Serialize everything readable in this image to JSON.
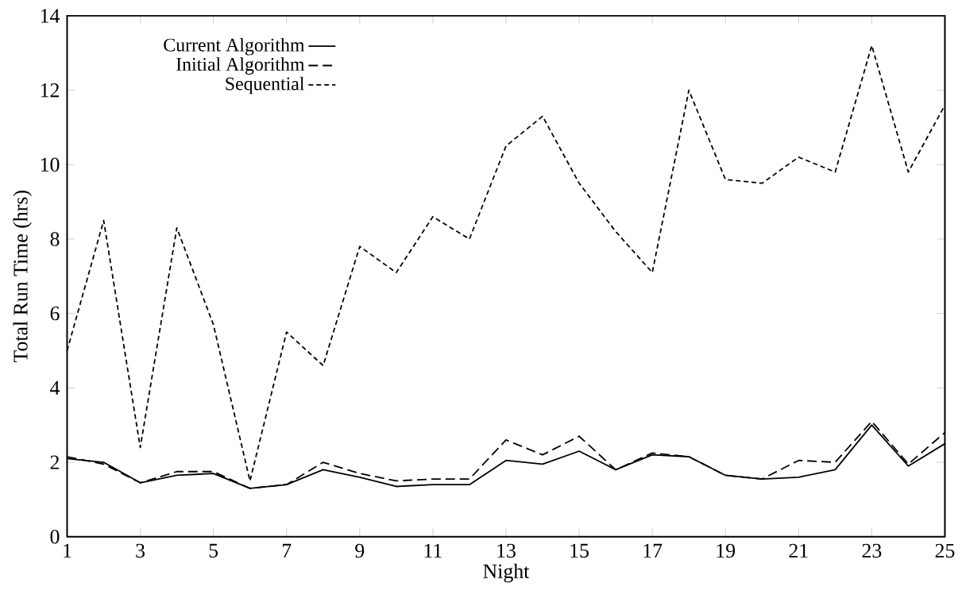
{
  "chart_data": {
    "type": "line",
    "xlabel": "Night",
    "ylabel": "Total Run Time (hrs)",
    "x": [
      1,
      2,
      3,
      4,
      5,
      6,
      7,
      8,
      9,
      10,
      11,
      12,
      13,
      14,
      15,
      16,
      17,
      18,
      19,
      20,
      21,
      22,
      23,
      24,
      25
    ],
    "series": [
      {
        "name": "Current Algorithm",
        "color": "#000000",
        "line_style": "solid",
        "values": [
          2.1,
          2.0,
          1.45,
          1.65,
          1.7,
          1.3,
          1.4,
          1.8,
          1.6,
          1.35,
          1.4,
          1.4,
          2.05,
          1.95,
          2.3,
          1.8,
          2.2,
          2.15,
          1.65,
          1.55,
          1.6,
          1.8,
          3.0,
          1.9,
          2.5
        ]
      },
      {
        "name": "Initial Algorithm",
        "color": "#000000",
        "line_style": "dashed",
        "values": [
          2.15,
          1.95,
          1.45,
          1.75,
          1.75,
          1.3,
          1.4,
          2.0,
          1.7,
          1.5,
          1.55,
          1.55,
          2.6,
          2.2,
          2.7,
          1.8,
          2.25,
          2.15,
          1.65,
          1.55,
          2.05,
          2.0,
          3.1,
          1.95,
          2.8
        ]
      },
      {
        "name": "Sequential",
        "color": "#000000",
        "line_style": "dotted",
        "values": [
          5.0,
          8.5,
          2.4,
          8.3,
          5.7,
          1.5,
          5.5,
          4.6,
          7.8,
          7.1,
          8.6,
          8.0,
          10.5,
          11.3,
          9.5,
          8.2,
          7.1,
          12.0,
          9.6,
          9.5,
          10.2,
          9.8,
          13.2,
          9.8,
          11.6
        ]
      }
    ],
    "xlim": [
      1,
      25
    ],
    "ylim": [
      0,
      14
    ],
    "xticks": [
      1,
      3,
      5,
      7,
      9,
      11,
      13,
      15,
      17,
      19,
      21,
      23,
      25
    ],
    "yticks": [
      0,
      2,
      4,
      6,
      8,
      10,
      12,
      14
    ],
    "grid": false,
    "legend": "top left",
    "marker": "none"
  }
}
